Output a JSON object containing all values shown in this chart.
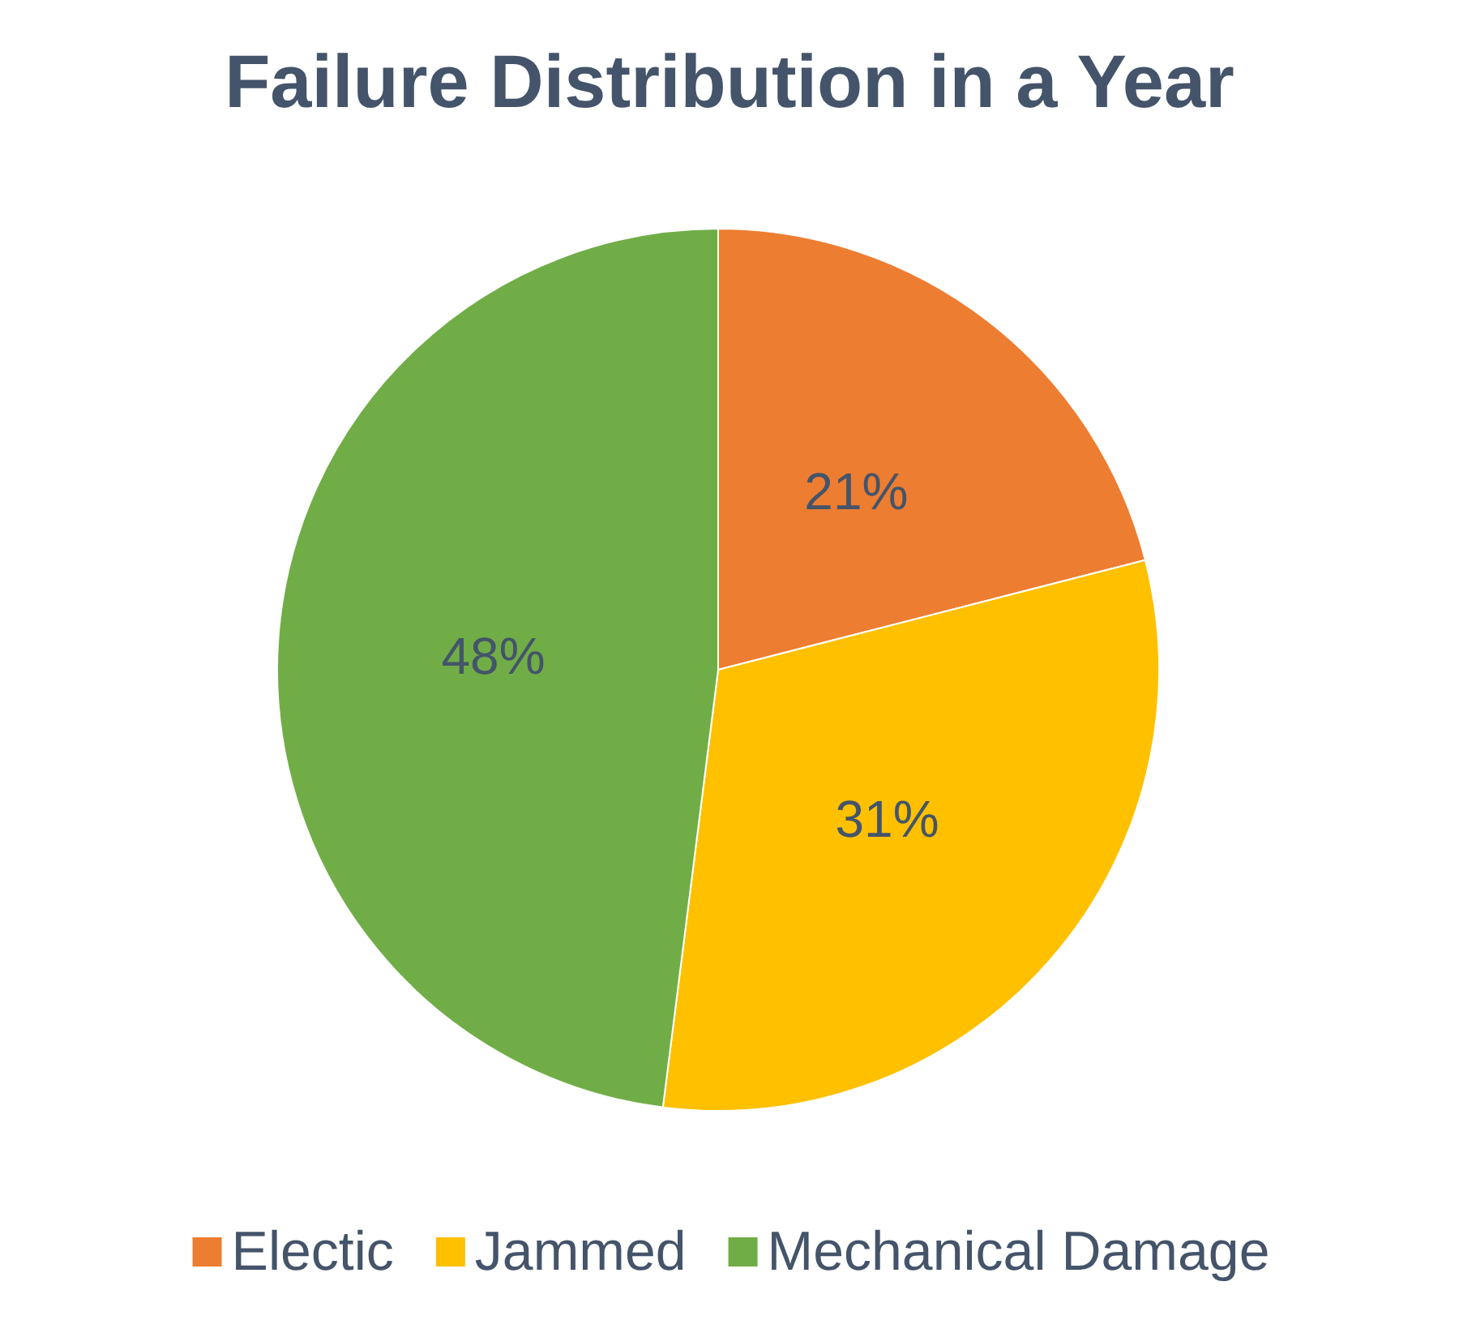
{
  "chart_data": {
    "type": "pie",
    "title": "Failure Distribution in a Year",
    "categories": [
      "Electic",
      "Jammed",
      "Mechanical Damage"
    ],
    "values": [
      21,
      31,
      48
    ],
    "colors": [
      "#ed7d31",
      "#ffc000",
      "#70ad47"
    ],
    "value_labels": [
      "21%",
      "31%",
      "48%"
    ],
    "legend": "bottom"
  }
}
